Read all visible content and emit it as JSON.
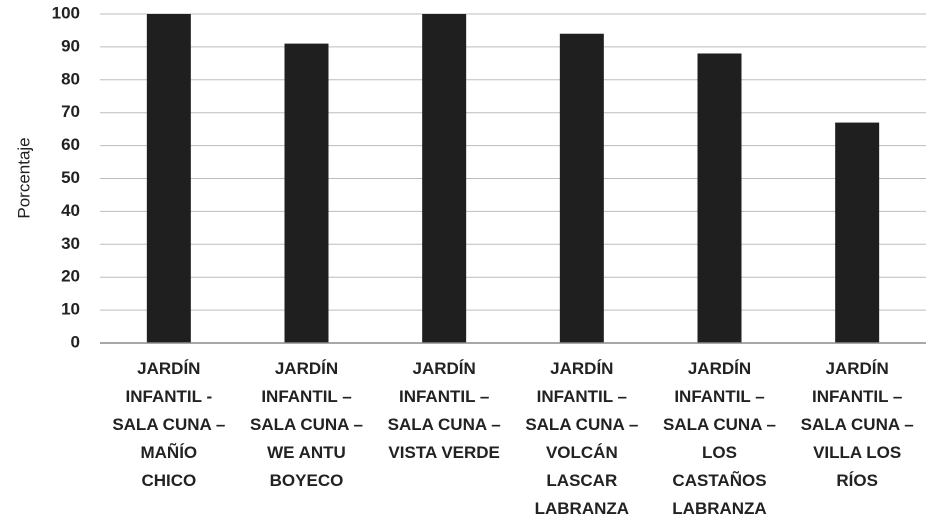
{
  "chart_data": {
    "type": "bar",
    "title": "",
    "xlabel": "",
    "ylabel": "Porcentaje",
    "ylim": [
      0,
      100
    ],
    "yticks": [
      0,
      10,
      20,
      30,
      40,
      50,
      60,
      70,
      80,
      90,
      100
    ],
    "grid": true,
    "legend": "none",
    "categories": [
      [
        "JARDÍN",
        "INFANTIL -",
        "SALA CUNA –",
        "MAÑÍO",
        "CHICO"
      ],
      [
        "JARDÍN",
        "INFANTIL –",
        "SALA CUNA –",
        "WE ANTU",
        "BOYECO"
      ],
      [
        "JARDÍN",
        "INFANTIL –",
        "SALA CUNA –",
        "VISTA VERDE"
      ],
      [
        "JARDÍN",
        "INFANTIL –",
        "SALA CUNA –",
        "VOLCÁN",
        "LASCAR",
        "LABRANZA"
      ],
      [
        "JARDÍN",
        "INFANTIL –",
        "SALA CUNA –",
        "LOS",
        "CASTAÑOS",
        "LABRANZA"
      ],
      [
        "JARDÍN",
        "INFANTIL –",
        "SALA CUNA –",
        "VILLA LOS",
        "RÍOS"
      ]
    ],
    "values": [
      100,
      91,
      100,
      94,
      88,
      67
    ],
    "colors": {
      "bar": "#1f1f1f",
      "grid": "#bdbdbd",
      "axis": "#8a8a8a",
      "text": "#222222"
    }
  }
}
